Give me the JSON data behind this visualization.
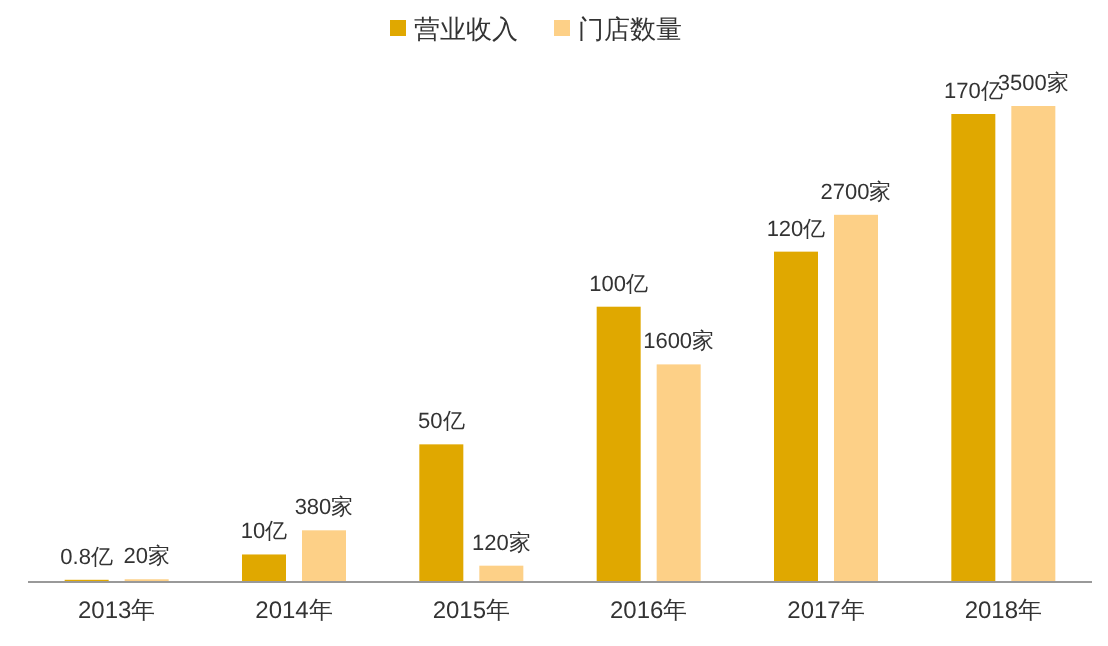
{
  "chart_data": {
    "type": "bar",
    "categories": [
      "2013年",
      "2014年",
      "2015年",
      "2016年",
      "2017年",
      "2018年"
    ],
    "series": [
      {
        "name": "营业收入",
        "color": "#e0a800",
        "values": [
          0.8,
          10,
          50,
          100,
          120,
          170
        ],
        "value_labels": [
          "0.8亿",
          "10亿",
          "50亿",
          "100亿",
          "120亿",
          "170亿"
        ]
      },
      {
        "name": "门店数量",
        "color": "#fdd087",
        "values": [
          20,
          380,
          120,
          1600,
          2700,
          3500
        ],
        "axis": "y2",
        "value_labels": [
          "20家",
          "380家",
          "120家",
          "1600家",
          "2700家",
          "3500家"
        ]
      }
    ],
    "tick_labels": "x",
    "legend": "top"
  }
}
